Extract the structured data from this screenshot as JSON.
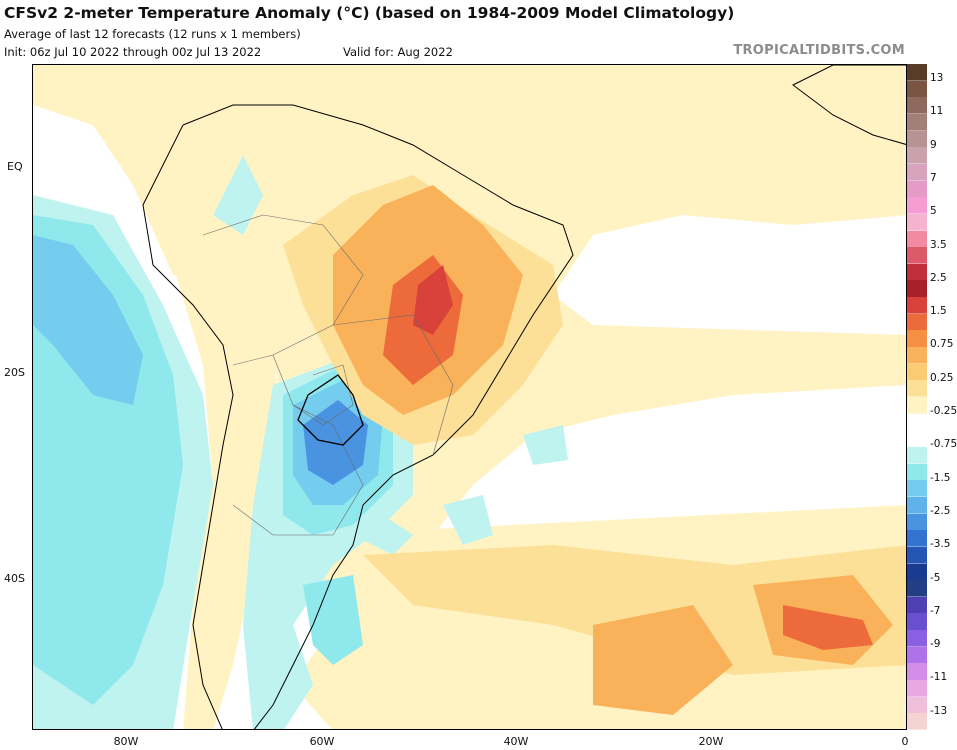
{
  "header": {
    "title": "CFSv2 2-meter Temperature Anomaly (°C) (based on 1984-2009 Model Climatology)",
    "subtitle": "Average of last 12 forecasts (12 runs x 1 members)",
    "init": "Init: 06z Jul 10 2022 through 00z Jul 13 2022",
    "valid": "Valid for: Aug 2022",
    "brand": "TROPICALTIDBITS.COM"
  },
  "axes": {
    "latitude_labels": [
      "EQ",
      "20S",
      "40S"
    ],
    "longitude_labels": [
      "80W",
      "60W",
      "40W",
      "20W",
      "0"
    ]
  },
  "colorbar": {
    "labels": [
      "13",
      "11",
      "9",
      "7",
      "5",
      "3.5",
      "2.5",
      "1.5",
      "0.75",
      "0.25",
      "-0.25",
      "-0.75",
      "-1.5",
      "-2.5",
      "-3.5",
      "-5",
      "-7",
      "-9",
      "-11",
      "-13"
    ],
    "colors": [
      "#5a3a28",
      "#7a5544",
      "#8e6a5e",
      "#a27f78",
      "#b89393",
      "#c9a2ac",
      "#d8a3bd",
      "#e59bc5",
      "#f59cd3",
      "#f5b3cf",
      "#f28aa2",
      "#dd5a6a",
      "#c0303c",
      "#a8202a",
      "#d8423a",
      "#ed6a3a",
      "#f59042",
      "#f9b25a",
      "#fbcb74",
      "#fde097",
      "#fff3c4",
      "#ffffff",
      "#ffffff",
      "#bff3ef",
      "#8ee8ec",
      "#74cdef",
      "#5fb2ea",
      "#4a93e0",
      "#3573d0",
      "#2656b4",
      "#1a3c90",
      "#243e86",
      "#4f3fb2",
      "#6a4fd0",
      "#8a5fe2",
      "#b072e8",
      "#d28ee8",
      "#e8a8e2",
      "#f0bfd9",
      "#f6d3d3"
    ]
  },
  "map_features": {
    "warm_anomaly_center": "central Brazil",
    "cold_anomaly_center": "Paraguay / northern Argentina",
    "secondary_warm_center": "South Atlantic near 10W 45S"
  }
}
